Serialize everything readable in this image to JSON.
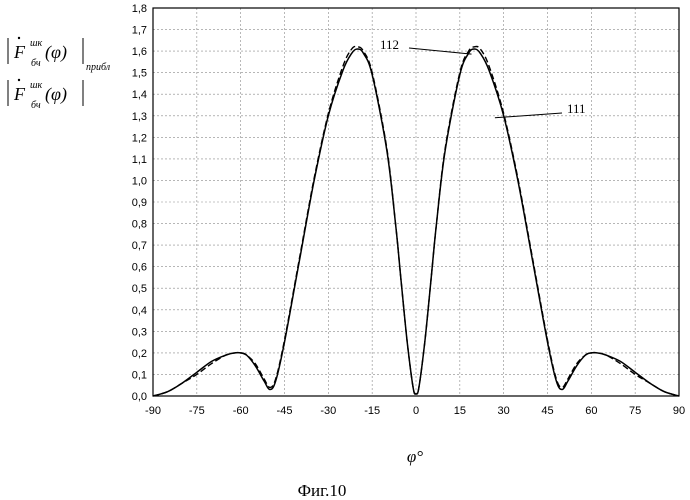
{
  "chart_data": {
    "type": "line",
    "xlabel": "φ°",
    "caption": "Фиг.10",
    "xlim": [
      -90,
      90
    ],
    "ylim": [
      0,
      1.8
    ],
    "x_ticks": [
      "-90",
      "-75",
      "-60",
      "-45",
      "-30",
      "-15",
      "0",
      "15",
      "30",
      "45",
      "60",
      "75",
      "90"
    ],
    "y_ticks": [
      "0,0",
      "0,1",
      "0,2",
      "0,3",
      "0,4",
      "0,5",
      "0,6",
      "0,7",
      "0,8",
      "0,9",
      "1,0",
      "1,1",
      "1,2",
      "1,3",
      "1,4",
      "1,5",
      "1,6",
      "1,7",
      "1,8"
    ],
    "grid": true,
    "legend": {
      "approx": {
        "F": "F",
        "sup": "шк",
        "sub": "бч",
        "arg": "(φ)",
        "tail": "прибл"
      },
      "exact": {
        "F": "F",
        "sup": "шк",
        "sub": "бч",
        "arg": "(φ)"
      }
    },
    "annotations": [
      {
        "text": "112",
        "points_to": "dashed",
        "x": 19,
        "y": 1.6
      },
      {
        "text": "111",
        "points_to": "solid",
        "x": 27,
        "y": 1.3
      }
    ],
    "series": [
      {
        "style": "solid",
        "x": [
          -90,
          -85,
          -80,
          -75,
          -70,
          -65,
          -62,
          -60,
          -58,
          -55,
          -52,
          -50,
          -48,
          -45,
          -40,
          -35,
          -30,
          -25,
          -22,
          -20,
          -18,
          -15,
          -10,
          -7,
          -5,
          -3,
          -1,
          0,
          1,
          3,
          5,
          7,
          10,
          15,
          18,
          20,
          22,
          25,
          30,
          35,
          40,
          45,
          48,
          50,
          52,
          55,
          58,
          60,
          62,
          65,
          70,
          75,
          80,
          85,
          90
        ],
        "y": [
          0,
          0.02,
          0.06,
          0.11,
          0.16,
          0.19,
          0.2,
          0.2,
          0.19,
          0.14,
          0.07,
          0.03,
          0.07,
          0.25,
          0.62,
          0.99,
          1.3,
          1.51,
          1.59,
          1.61,
          1.59,
          1.49,
          1.14,
          0.8,
          0.52,
          0.25,
          0.04,
          0.01,
          0.04,
          0.25,
          0.52,
          0.8,
          1.14,
          1.49,
          1.59,
          1.61,
          1.59,
          1.51,
          1.3,
          0.99,
          0.62,
          0.25,
          0.07,
          0.03,
          0.07,
          0.14,
          0.19,
          0.2,
          0.2,
          0.19,
          0.16,
          0.11,
          0.06,
          0.02,
          0
        ]
      },
      {
        "style": "dashed",
        "x": [
          -90,
          -85,
          -80,
          -75,
          -70,
          -65,
          -62,
          -60,
          -58,
          -55,
          -52,
          -50,
          -48,
          -45,
          -40,
          -35,
          -30,
          -25,
          -22,
          -20,
          -18,
          -15,
          -10,
          -7,
          -5,
          -3,
          -1,
          0,
          1,
          3,
          5,
          7,
          10,
          15,
          18,
          20,
          22,
          25,
          30,
          35,
          40,
          45,
          48,
          50,
          52,
          55,
          58,
          60,
          62,
          65,
          70,
          75,
          80,
          85,
          90
        ],
        "y": [
          0,
          0.02,
          0.06,
          0.1,
          0.15,
          0.19,
          0.2,
          0.2,
          0.19,
          0.15,
          0.08,
          0.04,
          0.08,
          0.26,
          0.63,
          1.0,
          1.31,
          1.53,
          1.61,
          1.62,
          1.6,
          1.5,
          1.15,
          0.8,
          0.52,
          0.25,
          0.04,
          0.01,
          0.04,
          0.25,
          0.52,
          0.8,
          1.15,
          1.5,
          1.6,
          1.62,
          1.61,
          1.53,
          1.31,
          1.0,
          0.63,
          0.26,
          0.08,
          0.04,
          0.08,
          0.15,
          0.19,
          0.2,
          0.2,
          0.19,
          0.15,
          0.1,
          0.06,
          0.02,
          0
        ]
      }
    ]
  }
}
